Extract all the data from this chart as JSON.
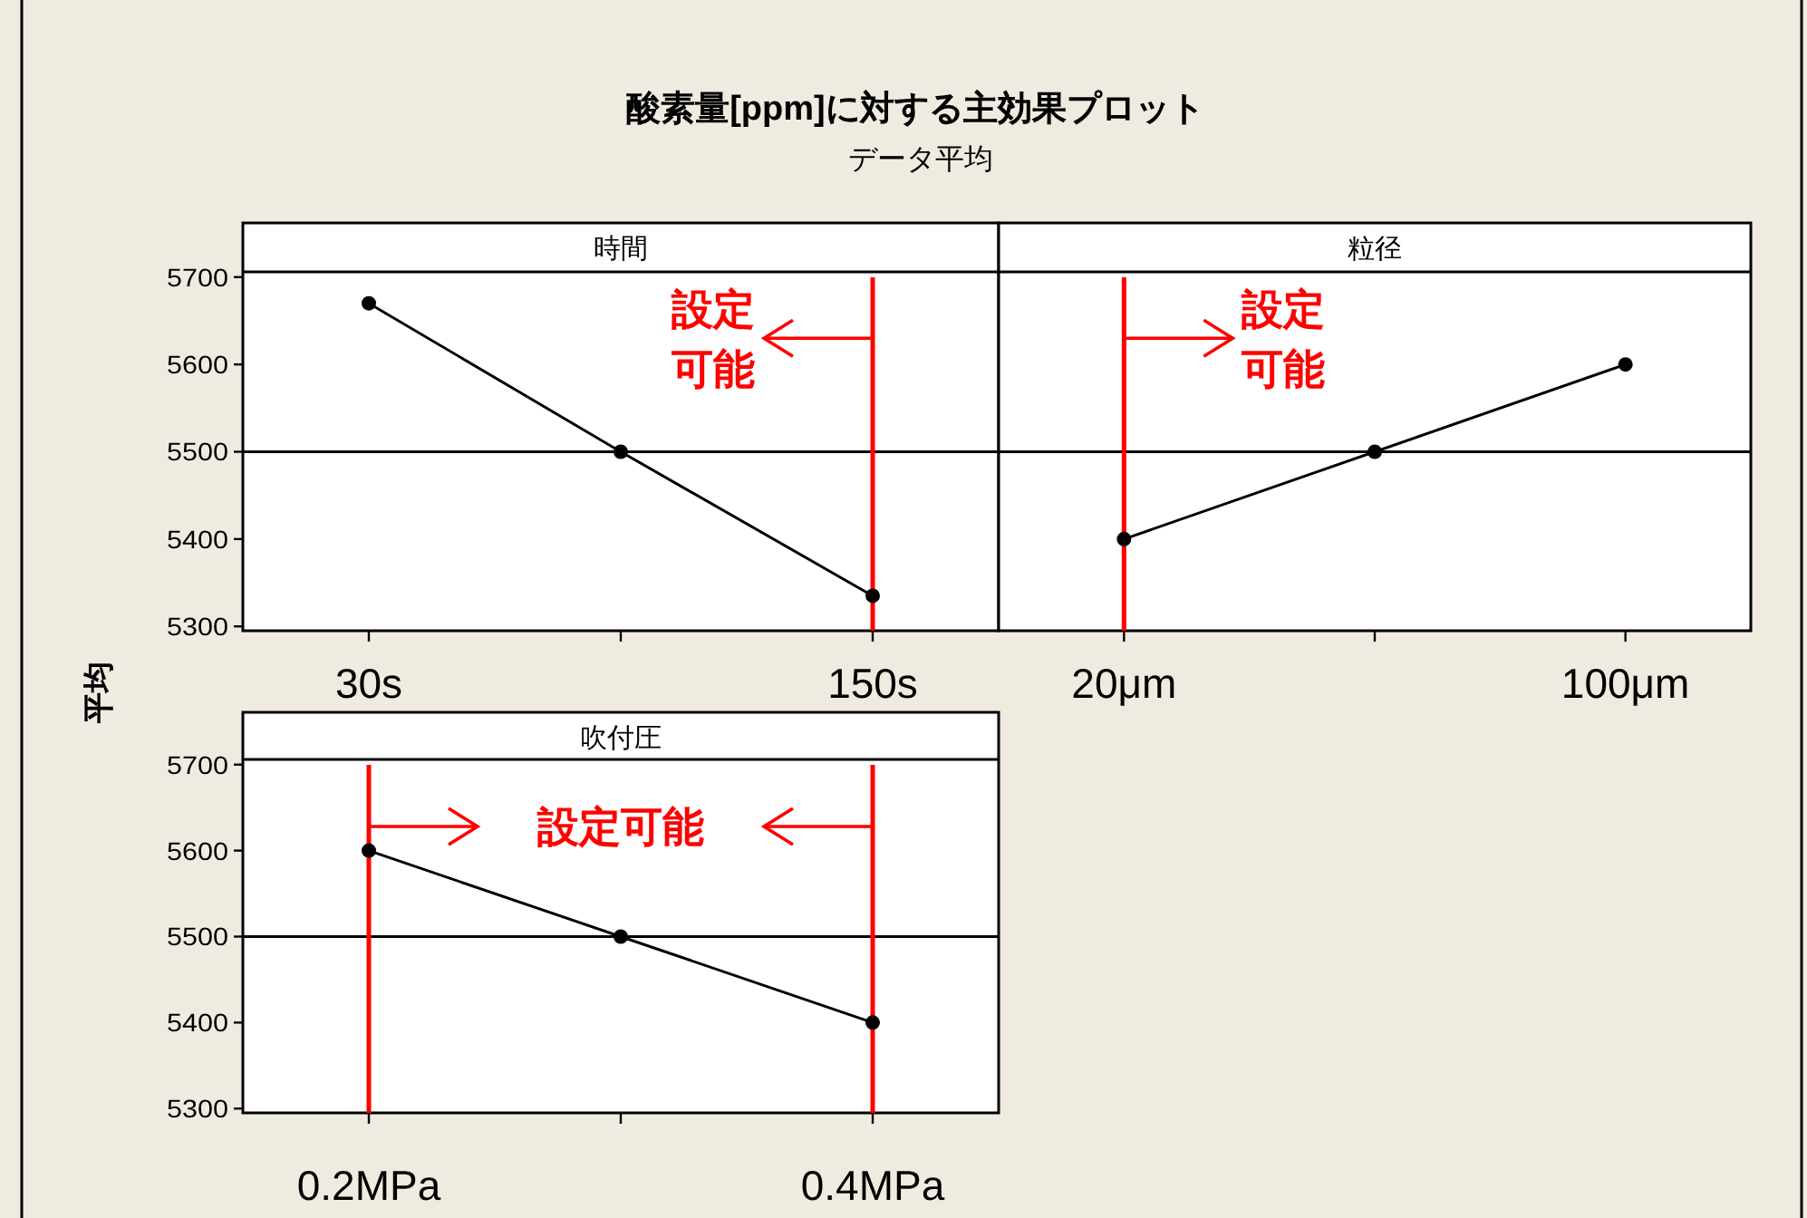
{
  "chart_data": [
    {
      "type": "other",
      "title": "酸素量[ppm]に対する主効果プロット",
      "subtitle": "データ平均",
      "ylabel": "平均"
    },
    {
      "type": "line",
      "title": "時間",
      "categories": [
        "30s",
        null,
        "150s"
      ],
      "values": [
        5670,
        5500,
        5335
      ],
      "color": "#000000",
      "marker": "circle",
      "ylim": [
        5295,
        5706
      ],
      "yticks": [
        5300,
        5400,
        5500,
        5600,
        5700
      ],
      "ref_lines": [
        {
          "axis": "y",
          "value": 5500,
          "color": "#000000"
        },
        {
          "axis": "x",
          "value": "150s",
          "color": "#ff0000"
        }
      ],
      "annotations": [
        {
          "text": "設定可能",
          "x": "150s",
          "y": 5630
        }
      ]
    },
    {
      "type": "line",
      "title": "粒径",
      "categories": [
        "20μm",
        null,
        "100μm"
      ],
      "values": [
        5400,
        5500,
        5600
      ],
      "color": "#000000",
      "marker": "circle",
      "ylim": [
        5295,
        5706
      ],
      "tick_labels": "x",
      "ref_lines": [
        {
          "axis": "y",
          "value": 5500,
          "color": "#000000"
        },
        {
          "axis": "x",
          "value": "20μm",
          "color": "#ff0000"
        }
      ],
      "annotations": [
        {
          "text": "設定可能",
          "x": "20μm",
          "y": 5630
        }
      ]
    },
    {
      "type": "line",
      "title": "吹付圧",
      "categories": [
        "0.2MPa",
        null,
        "0.4MPa"
      ],
      "values": [
        5600,
        5500,
        5400
      ],
      "color": "#000000",
      "marker": "circle",
      "ylim": [
        5295,
        5706
      ],
      "yticks": [
        5300,
        5400,
        5500,
        5600,
        5700
      ],
      "ref_lines": [
        {
          "axis": "y",
          "value": 5500,
          "color": "#000000"
        },
        {
          "axis": "x",
          "value": "0.2MPa",
          "color": "#ff0000"
        },
        {
          "axis": "x",
          "value": "0.4MPa",
          "color": "#ff0000"
        }
      ],
      "annotations": [
        "設定可能"
      ]
    }
  ]
}
